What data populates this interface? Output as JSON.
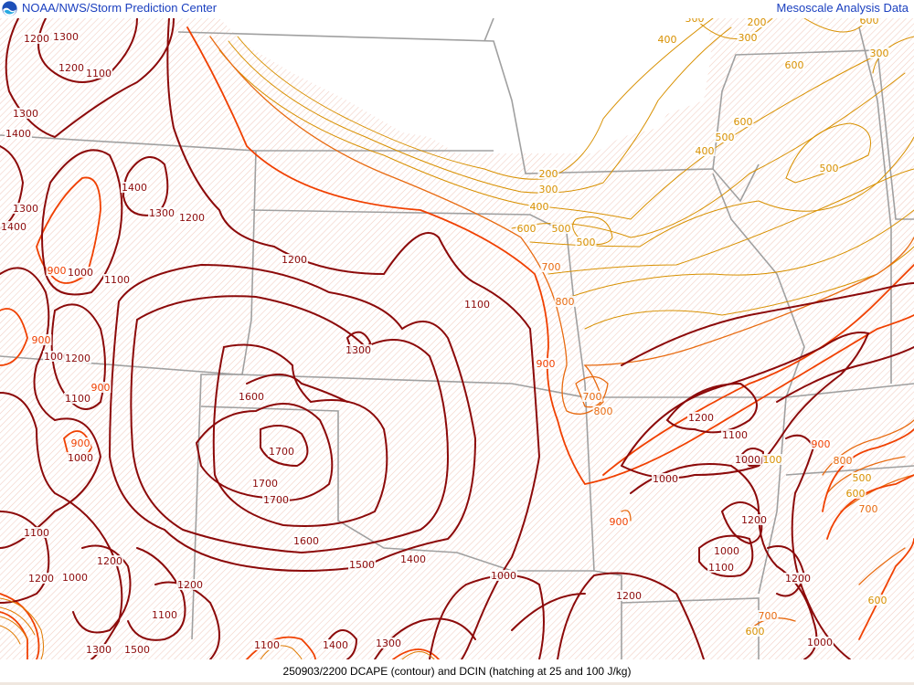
{
  "header": {
    "organization": "NOAA/NWS/Storm Prediction Center",
    "product_name": "Mesoscale Analysis Data",
    "logo_icon": "noaa-logo-icon"
  },
  "footer": {
    "caption": "250903/2200 DCAPE (contour) and DCIN (hatching at 25 and 100 J/kg)"
  },
  "map": {
    "field": "DCAPE",
    "units": "J/kg",
    "hatching_levels": [
      25,
      100
    ],
    "colors": {
      "low_gold": "#d89000",
      "mid_orange": "#e86a10",
      "orange_red": "#f04000",
      "dark_red": "#8c0a0a",
      "border_gray": "#a0a0a0",
      "hatch": "#f2cfc4"
    },
    "contour_labels": [
      "1200",
      "1300",
      "1200",
      "1100",
      "1300",
      "1400",
      "1400",
      "1300",
      "1200",
      "1300",
      "1400",
      "900",
      "1000",
      "1100",
      "1200",
      "1100",
      "1300",
      "1600",
      "1700",
      "1700",
      "1700",
      "1600",
      "1500",
      "1400",
      "1000",
      "1200",
      "900",
      "1000",
      "1200",
      "900",
      "1100",
      "900",
      "1000",
      "1100",
      "1200",
      "1000",
      "1200",
      "1200",
      "1100",
      "1300",
      "1500",
      "1400",
      "1300",
      "1100",
      "800",
      "900",
      "700",
      "800",
      "700",
      "600",
      "500",
      "500",
      "400",
      "300",
      "200",
      "1200",
      "1100",
      "1000",
      "100",
      "1000",
      "900",
      "1200",
      "1000",
      "1100",
      "1200",
      "900",
      "800",
      "500",
      "600",
      "700",
      "600",
      "700",
      "600",
      "1000",
      "400",
      "300",
      "200",
      "300",
      "600",
      "600",
      "500",
      "400",
      "500",
      "600",
      "300"
    ]
  }
}
